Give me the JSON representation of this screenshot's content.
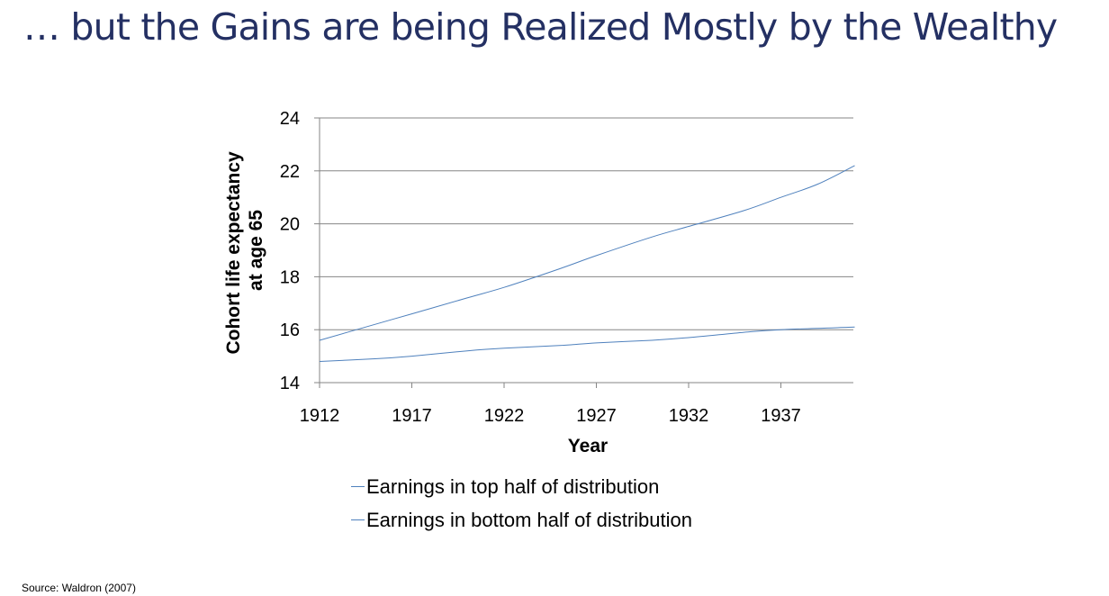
{
  "slide": {
    "title": "… but the Gains are being Realized Mostly by the Wealthy",
    "source": "Source: Waldron (2007)"
  },
  "colors": {
    "title": "#243063",
    "series_line": "#4f81bd",
    "gridline": "#868686"
  },
  "chart_data": {
    "type": "line",
    "title": "",
    "xlabel": "Year",
    "ylabel": "Cohort life expectancy at age 65",
    "ylabel_lines": [
      "Cohort life expectancy",
      "at age 65"
    ],
    "xlim": [
      1912,
      1941
    ],
    "ylim": [
      14,
      24
    ],
    "x_ticks": [
      1912,
      1917,
      1922,
      1927,
      1932,
      1937
    ],
    "y_ticks": [
      14,
      16,
      18,
      20,
      22,
      24
    ],
    "grid": "horizontal",
    "legend_position": "bottom",
    "series": [
      {
        "name": "Earnings in top half of distribution",
        "color": "#4f81bd",
        "x": [
          1912,
          1914,
          1917,
          1920,
          1922,
          1925,
          1927,
          1930,
          1932,
          1935,
          1937,
          1939,
          1941
        ],
        "values": [
          15.6,
          16.0,
          16.6,
          17.2,
          17.6,
          18.3,
          18.8,
          19.5,
          19.9,
          20.5,
          21.0,
          21.5,
          22.2
        ]
      },
      {
        "name": "Earnings in bottom half of distribution",
        "color": "#4f81bd",
        "x": [
          1912,
          1915,
          1917,
          1920,
          1922,
          1925,
          1927,
          1930,
          1932,
          1935,
          1937,
          1941
        ],
        "values": [
          14.8,
          14.9,
          15.0,
          15.2,
          15.3,
          15.4,
          15.5,
          15.6,
          15.7,
          15.9,
          16.0,
          16.1
        ]
      }
    ]
  }
}
